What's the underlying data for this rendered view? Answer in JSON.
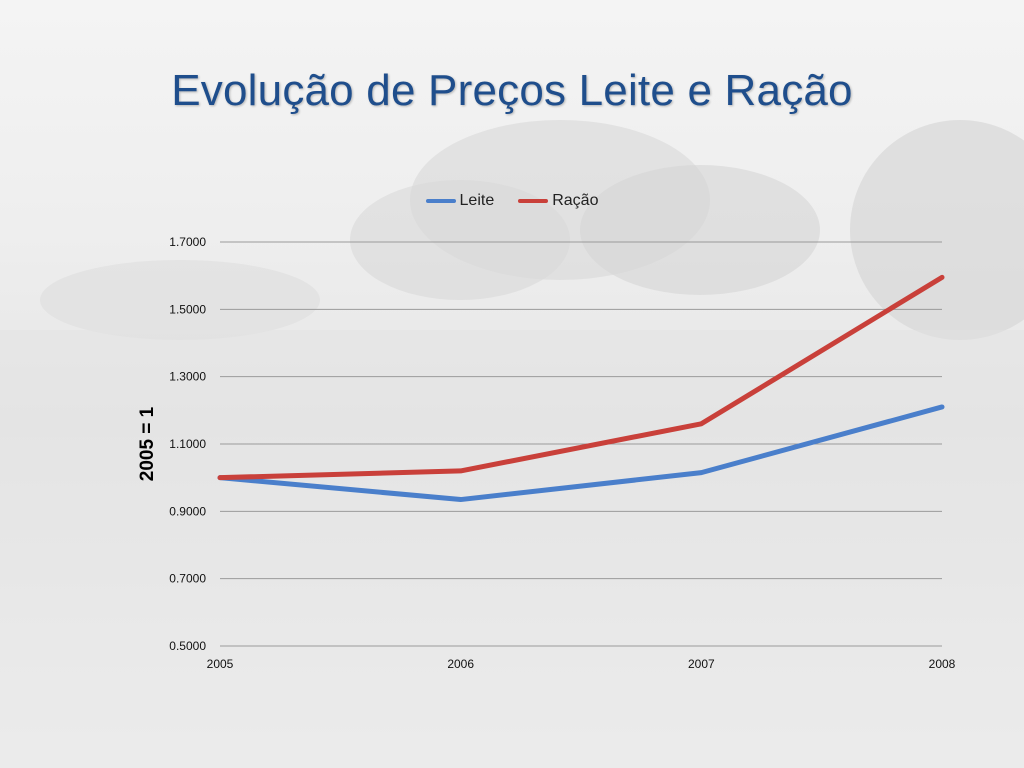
{
  "slide": {
    "title": "Evolução de Preços Leite e Ração"
  },
  "chart_data": {
    "type": "line",
    "title": "Evolução de Preços Leite e Ração",
    "xlabel": "",
    "ylabel": "2005 = 1",
    "x": [
      "2005",
      "2006",
      "2007",
      "2008"
    ],
    "y_ticks": [
      "0.5000",
      "0.7000",
      "0.9000",
      "1.1000",
      "1.3000",
      "1.5000",
      "1.7000"
    ],
    "ylim": [
      0.5,
      1.7
    ],
    "grid": true,
    "legend_position": "top",
    "series": [
      {
        "name": "Leite",
        "color": "#4a7fcb",
        "values": [
          1.0,
          0.935,
          1.015,
          1.21
        ]
      },
      {
        "name": "Ração",
        "color": "#c9403a",
        "values": [
          1.0,
          1.02,
          1.16,
          1.595
        ]
      }
    ]
  }
}
